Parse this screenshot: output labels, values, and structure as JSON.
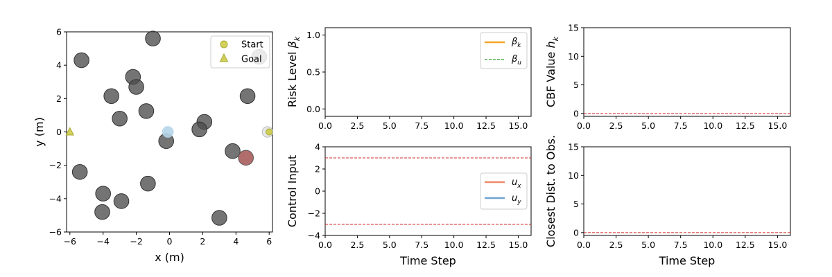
{
  "colors": {
    "obstacle": "#4d4d4d",
    "robot": "#b5d5ea",
    "goal_marker": "#c9c93e",
    "hit_obstacle": "#a85c5c",
    "beta_k": "#f5a623",
    "beta_u": "#2ca02c",
    "ux": "#ee8a6a",
    "uy": "#6ea3d0",
    "limit": "#d62728"
  },
  "chart_data": [
    {
      "type": "scatter",
      "xlabel": "x (m)",
      "ylabel": "y (m)",
      "xlim": [
        -6.2,
        6.2
      ],
      "ylim": [
        -6,
        6
      ],
      "xticks": [
        "−6",
        "−4",
        "−2",
        "0",
        "2",
        "4",
        "6"
      ],
      "xtick_values": [
        -6,
        -4,
        -2,
        0,
        2,
        4,
        6
      ],
      "yticks": [
        "−6",
        "−4",
        "−2",
        "0",
        "2",
        "4",
        "6"
      ],
      "ytick_values": [
        -6,
        -4,
        -2,
        0,
        2,
        4,
        6
      ],
      "obstacle_radius": 0.45,
      "obstacles": [
        {
          "x": -1.0,
          "y": 5.6
        },
        {
          "x": -5.3,
          "y": 4.3
        },
        {
          "x": 5.4,
          "y": 4.5
        },
        {
          "x": -2.2,
          "y": 3.3
        },
        {
          "x": -2.0,
          "y": 2.7
        },
        {
          "x": -3.5,
          "y": 2.15
        },
        {
          "x": 4.7,
          "y": 2.15
        },
        {
          "x": -1.4,
          "y": 1.25
        },
        {
          "x": -3.0,
          "y": 0.8
        },
        {
          "x": 2.1,
          "y": 0.6
        },
        {
          "x": 1.8,
          "y": 0.15
        },
        {
          "x": -0.2,
          "y": -0.55
        },
        {
          "x": 3.8,
          "y": -1.15
        },
        {
          "x": -5.4,
          "y": -2.4
        },
        {
          "x": -1.3,
          "y": -3.1
        },
        {
          "x": -4.0,
          "y": -3.7
        },
        {
          "x": -2.9,
          "y": -4.15
        },
        {
          "x": -4.05,
          "y": -4.8
        },
        {
          "x": 3.0,
          "y": -5.15
        }
      ],
      "colliding_obstacle": {
        "x": 4.6,
        "y": -1.55
      },
      "robot": {
        "x": -0.1,
        "y": 0.0,
        "radius": 0.35
      },
      "start_robot": {
        "x": 5.9,
        "y": 0.0,
        "radius": 0.32
      },
      "start": {
        "x": 6.0,
        "y": 0.0
      },
      "goal": {
        "x": -6.0,
        "y": 0.0
      },
      "legend": [
        "Start",
        "Goal"
      ],
      "legend_position": "top-right"
    },
    {
      "type": "line",
      "ylabel": "Risk Level β_k",
      "ylabel_main": "Risk Level ",
      "ylabel_symbol": "β",
      "ylabel_sub": "k",
      "xlim": [
        0,
        16
      ],
      "ylim": [
        -0.1,
        1.1
      ],
      "xticks": [
        "0.0",
        "2.5",
        "5.0",
        "7.5",
        "10.0",
        "12.5",
        "15.0"
      ],
      "xtick_values": [
        0,
        2.5,
        5,
        7.5,
        10,
        12.5,
        15
      ],
      "yticks": [
        "0.0",
        "0.5",
        "1.0"
      ],
      "ytick_values": [
        0,
        0.5,
        1
      ],
      "series": [
        {
          "name": "β_k",
          "symbol": "β",
          "sub": "k",
          "values": []
        },
        {
          "name": "β_u",
          "symbol": "β",
          "sub": "u",
          "values": []
        }
      ],
      "legend_position": "top-right"
    },
    {
      "type": "line",
      "ylabel": "CBF Value h_k",
      "ylabel_main": "CBF Value ",
      "ylabel_symbol": "h",
      "ylabel_sub": "k",
      "xlim": [
        0,
        16
      ],
      "ylim": [
        -0.5,
        15
      ],
      "xticks": [
        "0.0",
        "2.5",
        "5.0",
        "7.5",
        "10.0",
        "12.5",
        "15.0"
      ],
      "xtick_values": [
        0,
        2.5,
        5,
        7.5,
        10,
        12.5,
        15
      ],
      "yticks": [
        "0",
        "5",
        "10",
        "15"
      ],
      "ytick_values": [
        0,
        5,
        10,
        15
      ],
      "hlines": [
        0
      ],
      "series": []
    },
    {
      "type": "line",
      "xlabel": "Time Step",
      "ylabel": "Control Input",
      "xlim": [
        0,
        16
      ],
      "ylim": [
        -4,
        4
      ],
      "xticks": [
        "0.0",
        "2.5",
        "5.0",
        "7.5",
        "10.0",
        "12.5",
        "15.0"
      ],
      "xtick_values": [
        0,
        2.5,
        5,
        7.5,
        10,
        12.5,
        15
      ],
      "yticks": [
        "−4",
        "−2",
        "0",
        "2",
        "4"
      ],
      "ytick_values": [
        -4,
        -2,
        0,
        2,
        4
      ],
      "hlines": [
        3,
        -3
      ],
      "series": [
        {
          "name": "u_x",
          "symbol": "u",
          "sub": "x",
          "values": []
        },
        {
          "name": "u_y",
          "symbol": "u",
          "sub": "y",
          "values": []
        }
      ],
      "legend_position": "center-right"
    },
    {
      "type": "line",
      "xlabel": "Time Step",
      "ylabel": "Closest Dist. to Obs.",
      "xlim": [
        0,
        16
      ],
      "ylim": [
        -0.5,
        15
      ],
      "xticks": [
        "0.0",
        "2.5",
        "5.0",
        "7.5",
        "10.0",
        "12.5",
        "15.0"
      ],
      "xtick_values": [
        0,
        2.5,
        5,
        7.5,
        10,
        12.5,
        15
      ],
      "yticks": [
        "0",
        "5",
        "10",
        "15"
      ],
      "ytick_values": [
        0,
        5,
        10,
        15
      ],
      "hlines": [
        0
      ],
      "series": []
    }
  ]
}
